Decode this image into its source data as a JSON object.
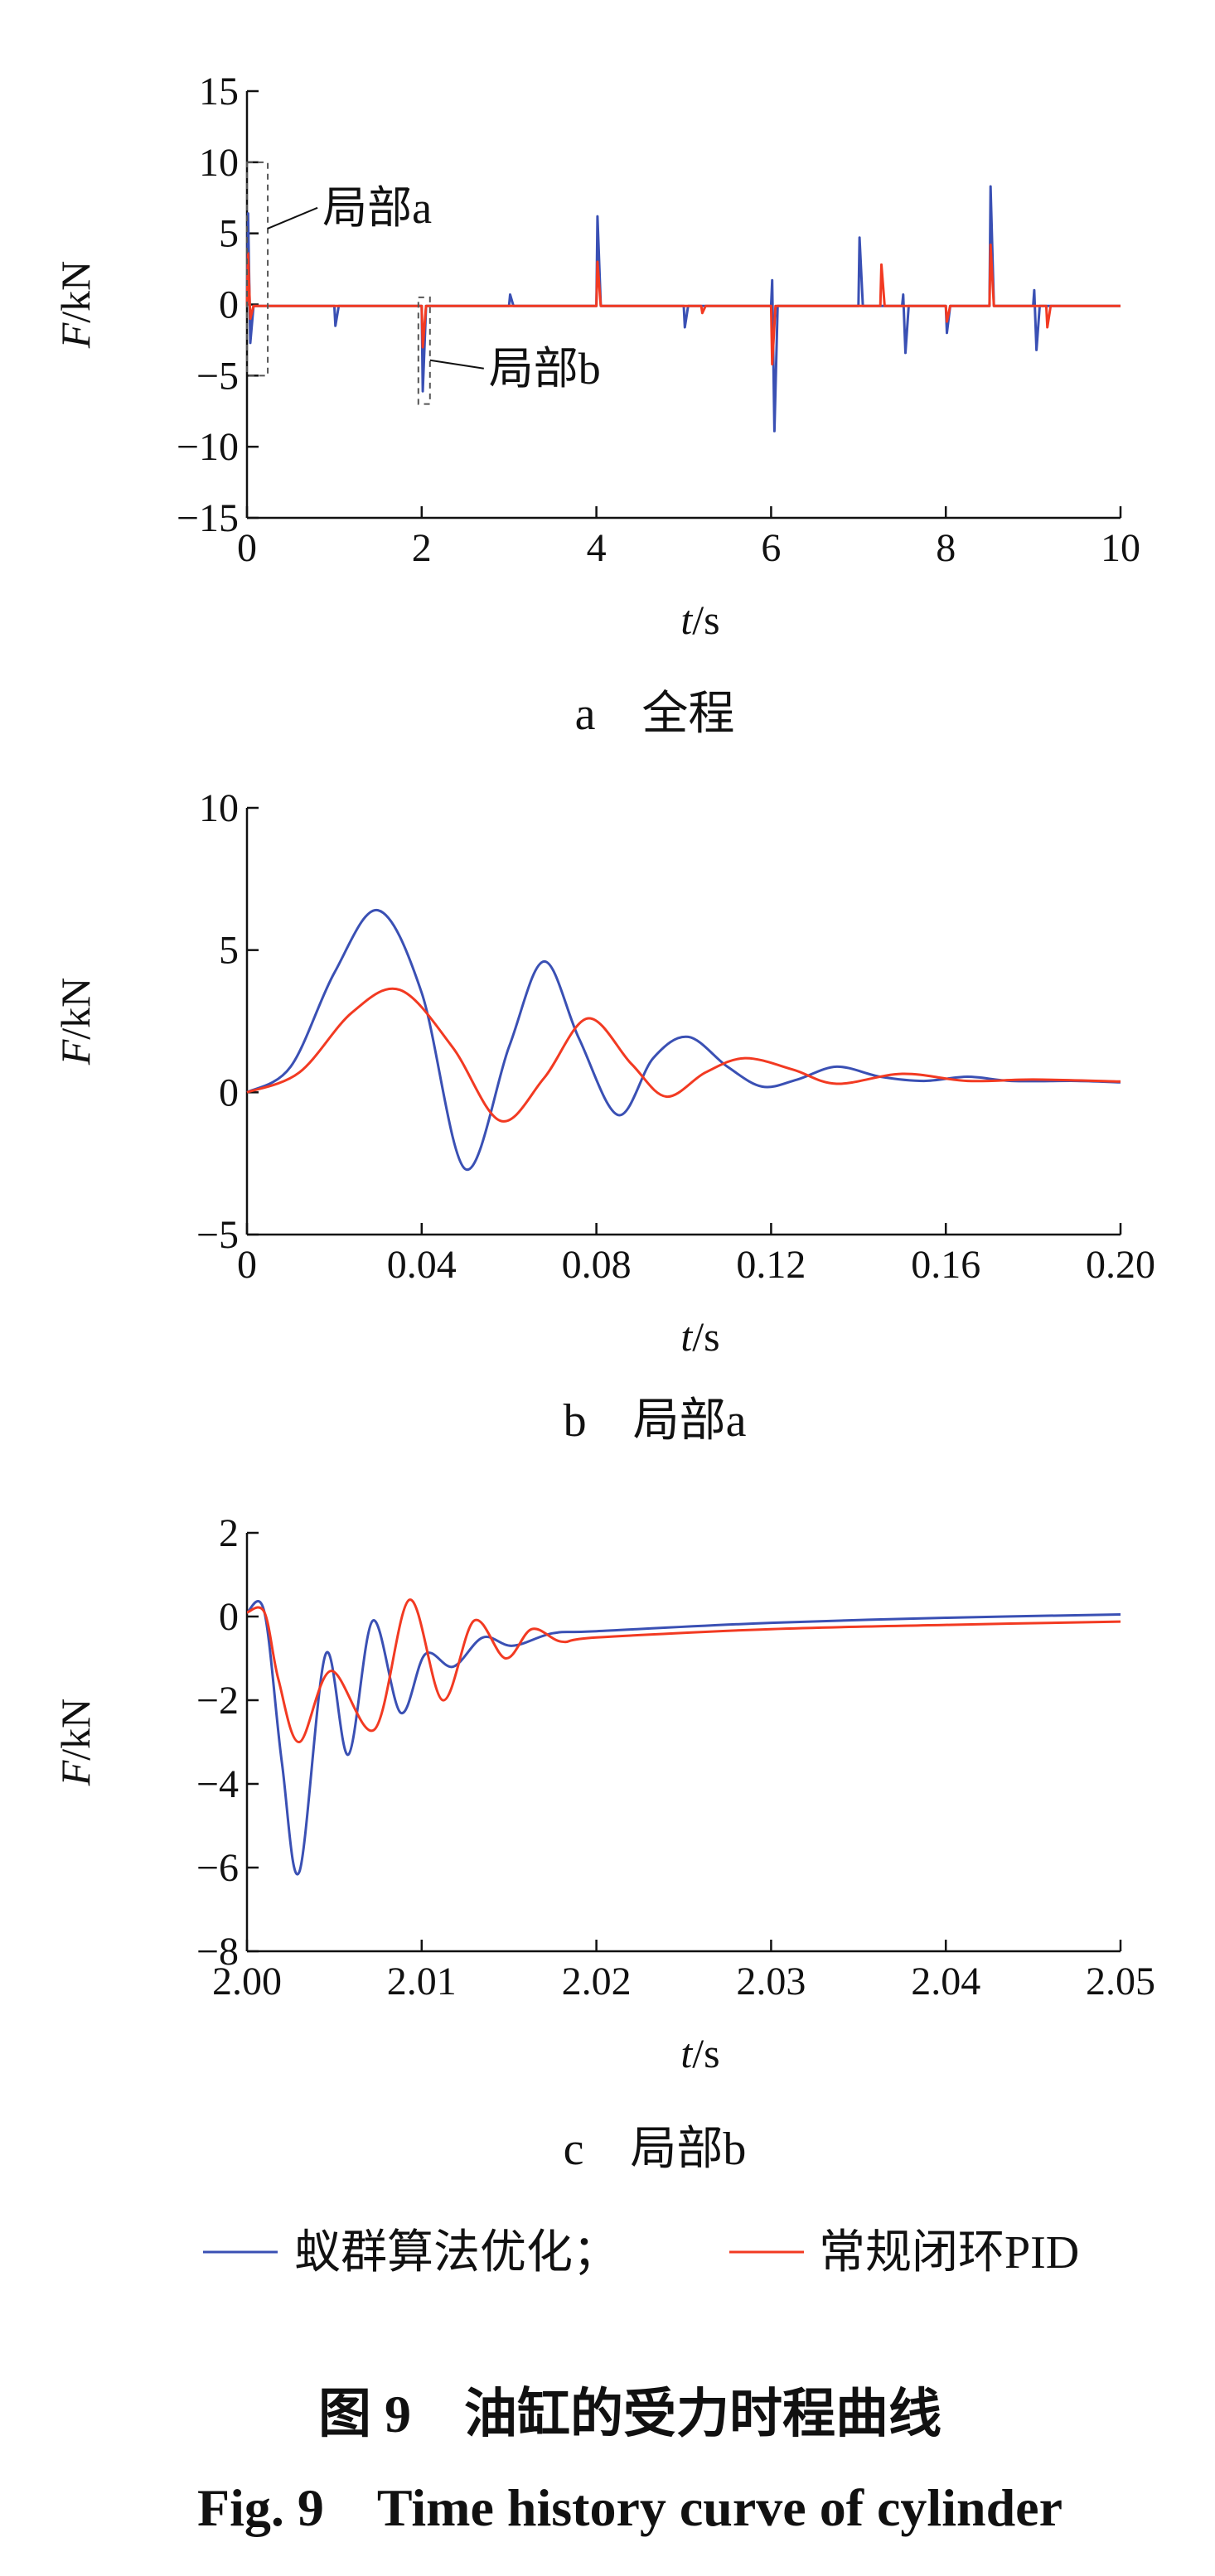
{
  "colors": {
    "swarm": "#3a50b4",
    "pid": "#f23a22",
    "axis": "#111111",
    "callout": "#555555"
  },
  "legend": {
    "swarm": "蚁群算法优化；",
    "pid": "常规闭环PID"
  },
  "figure_title": {
    "cn": "图 9　油缸的受力时程曲线",
    "en": "Fig. 9　Time history curve of cylinder"
  },
  "chart_data": [
    {
      "id": "a",
      "type": "line",
      "caption": "a　全程",
      "xlabel": {
        "var": "t",
        "unit": "/s"
      },
      "ylabel": {
        "var": "F",
        "unit": "/kN"
      },
      "xlim": [
        0,
        10
      ],
      "ylim": [
        -15,
        15
      ],
      "xticks": [
        0,
        2,
        4,
        6,
        8,
        10
      ],
      "xtick_labels": [
        "0",
        "2",
        "4",
        "6",
        "8",
        "10"
      ],
      "yticks": [
        15,
        10,
        5,
        0,
        -5,
        -10,
        -15
      ],
      "ytick_labels": [
        "15",
        "10",
        "5",
        "0",
        "−5",
        "−10",
        "−15"
      ],
      "annotations": [
        {
          "label": "局部a",
          "x_range": [
            0,
            0.2
          ],
          "y_range": [
            -5,
            10
          ]
        },
        {
          "label": "局部b",
          "x_range": [
            2.0,
            2.05
          ],
          "y_range": [
            -7,
            0.5
          ]
        }
      ],
      "series": [
        {
          "name": "蚁群算法优化",
          "color_key": "swarm",
          "baseline": -0.1,
          "spikes": [
            {
              "t": 0.0,
              "peaks": [
                6.4,
                -2.7
              ]
            },
            {
              "t": 1.0,
              "peaks": [
                -1.5
              ]
            },
            {
              "t": 2.0,
              "peaks": [
                -6.1
              ]
            },
            {
              "t": 3.0,
              "peaks": [
                0.7
              ]
            },
            {
              "t": 4.0,
              "peaks": [
                6.2
              ]
            },
            {
              "t": 5.0,
              "peaks": [
                -1.6
              ]
            },
            {
              "t": 6.0,
              "peaks": [
                1.7,
                -8.9
              ]
            },
            {
              "t": 7.0,
              "peaks": [
                4.7
              ]
            },
            {
              "t": 7.5,
              "peaks": [
                0.7,
                -3.4
              ]
            },
            {
              "t": 8.0,
              "peaks": [
                -2.0
              ]
            },
            {
              "t": 8.5,
              "peaks": [
                8.3
              ]
            },
            {
              "t": 9.0,
              "peaks": [
                1.0,
                -3.2
              ]
            }
          ]
        },
        {
          "name": "常规闭环PID",
          "color_key": "pid",
          "baseline": -0.1,
          "spikes": [
            {
              "t": 0.0,
              "peaks": [
                3.6,
                -1.0
              ]
            },
            {
              "t": 2.0,
              "peaks": [
                -3.0
              ]
            },
            {
              "t": 4.0,
              "peaks": [
                3.0
              ]
            },
            {
              "t": 5.2,
              "peaks": [
                -0.6
              ]
            },
            {
              "t": 6.0,
              "peaks": [
                -4.2
              ]
            },
            {
              "t": 7.25,
              "peaks": [
                2.8
              ]
            },
            {
              "t": 8.0,
              "peaks": [
                -1.2
              ]
            },
            {
              "t": 8.5,
              "peaks": [
                4.2
              ]
            },
            {
              "t": 9.15,
              "peaks": [
                -1.6
              ]
            }
          ]
        }
      ]
    },
    {
      "id": "b",
      "type": "line",
      "caption": "b　局部a",
      "xlabel": {
        "var": "t",
        "unit": "/s"
      },
      "ylabel": {
        "var": "F",
        "unit": "/kN"
      },
      "xlim": [
        0,
        0.2
      ],
      "ylim": [
        -5,
        10
      ],
      "xticks": [
        0,
        0.04,
        0.08,
        0.12,
        0.16,
        0.2
      ],
      "xtick_labels": [
        "0",
        "0.04",
        "0.08",
        "0.12",
        "0.16",
        "0.20"
      ],
      "yticks": [
        10,
        5,
        0,
        -5
      ],
      "ytick_labels": [
        "10",
        "5",
        "0",
        "−5"
      ],
      "series": [
        {
          "name": "蚁群算法优化",
          "color_key": "swarm",
          "x": [
            0,
            0.01,
            0.02,
            0.03,
            0.04,
            0.05,
            0.06,
            0.068,
            0.076,
            0.085,
            0.093,
            0.101,
            0.11,
            0.118,
            0.126,
            0.135,
            0.145,
            0.155,
            0.165,
            0.175,
            0.19,
            0.2
          ],
          "y": [
            0,
            0.9,
            4.2,
            6.4,
            3.5,
            -2.7,
            1.6,
            4.6,
            1.9,
            -0.8,
            1.2,
            1.95,
            0.9,
            0.2,
            0.45,
            0.9,
            0.55,
            0.4,
            0.55,
            0.4,
            0.4,
            0.35
          ]
        },
        {
          "name": "常规闭环PID",
          "color_key": "pid",
          "x": [
            0,
            0.012,
            0.024,
            0.035,
            0.047,
            0.058,
            0.068,
            0.078,
            0.088,
            0.096,
            0.105,
            0.114,
            0.125,
            0.135,
            0.15,
            0.165,
            0.18,
            0.2
          ],
          "y": [
            0,
            0.7,
            2.8,
            3.6,
            1.6,
            -1.0,
            0.5,
            2.6,
            1.0,
            -0.15,
            0.7,
            1.2,
            0.8,
            0.3,
            0.65,
            0.4,
            0.45,
            0.38
          ]
        }
      ]
    },
    {
      "id": "c",
      "type": "line",
      "caption": "c　局部b",
      "xlabel": {
        "var": "t",
        "unit": "/s"
      },
      "ylabel": {
        "var": "F",
        "unit": "/kN"
      },
      "xlim": [
        2.0,
        2.05
      ],
      "ylim": [
        -8,
        2
      ],
      "xticks": [
        2.0,
        2.01,
        2.02,
        2.03,
        2.04,
        2.05
      ],
      "xtick_labels": [
        "2.00",
        "2.01",
        "2.02",
        "2.03",
        "2.04",
        "2.05"
      ],
      "yticks": [
        2,
        0,
        -2,
        -4,
        -6,
        -8
      ],
      "ytick_labels": [
        "2",
        "0",
        "−2",
        "−4",
        "−6",
        "−8"
      ],
      "series": [
        {
          "name": "蚁群算法优化",
          "color_key": "swarm",
          "x": [
            2.0,
            2.001,
            2.002,
            2.003,
            2.0045,
            2.0058,
            2.0072,
            2.0088,
            2.0102,
            2.0118,
            2.0135,
            2.0152,
            2.0175,
            2.02,
            2.03,
            2.04,
            2.05
          ],
          "y": [
            0.1,
            0.1,
            -3.5,
            -6.1,
            -0.9,
            -3.3,
            -0.1,
            -2.3,
            -0.9,
            -1.2,
            -0.5,
            -0.7,
            -0.4,
            -0.35,
            -0.15,
            -0.03,
            0.05
          ]
        },
        {
          "name": "常规闭环PID",
          "color_key": "pid",
          "x": [
            2.0,
            2.001,
            2.0018,
            2.003,
            2.0048,
            2.0073,
            2.0093,
            2.0112,
            2.013,
            2.0148,
            2.0163,
            2.018,
            2.02,
            2.03,
            2.04,
            2.05
          ],
          "y": [
            0.1,
            0.1,
            -1.5,
            -3.0,
            -1.3,
            -2.7,
            0.4,
            -2.0,
            -0.1,
            -1.0,
            -0.3,
            -0.6,
            -0.5,
            -0.3,
            -0.2,
            -0.12
          ]
        }
      ]
    }
  ]
}
